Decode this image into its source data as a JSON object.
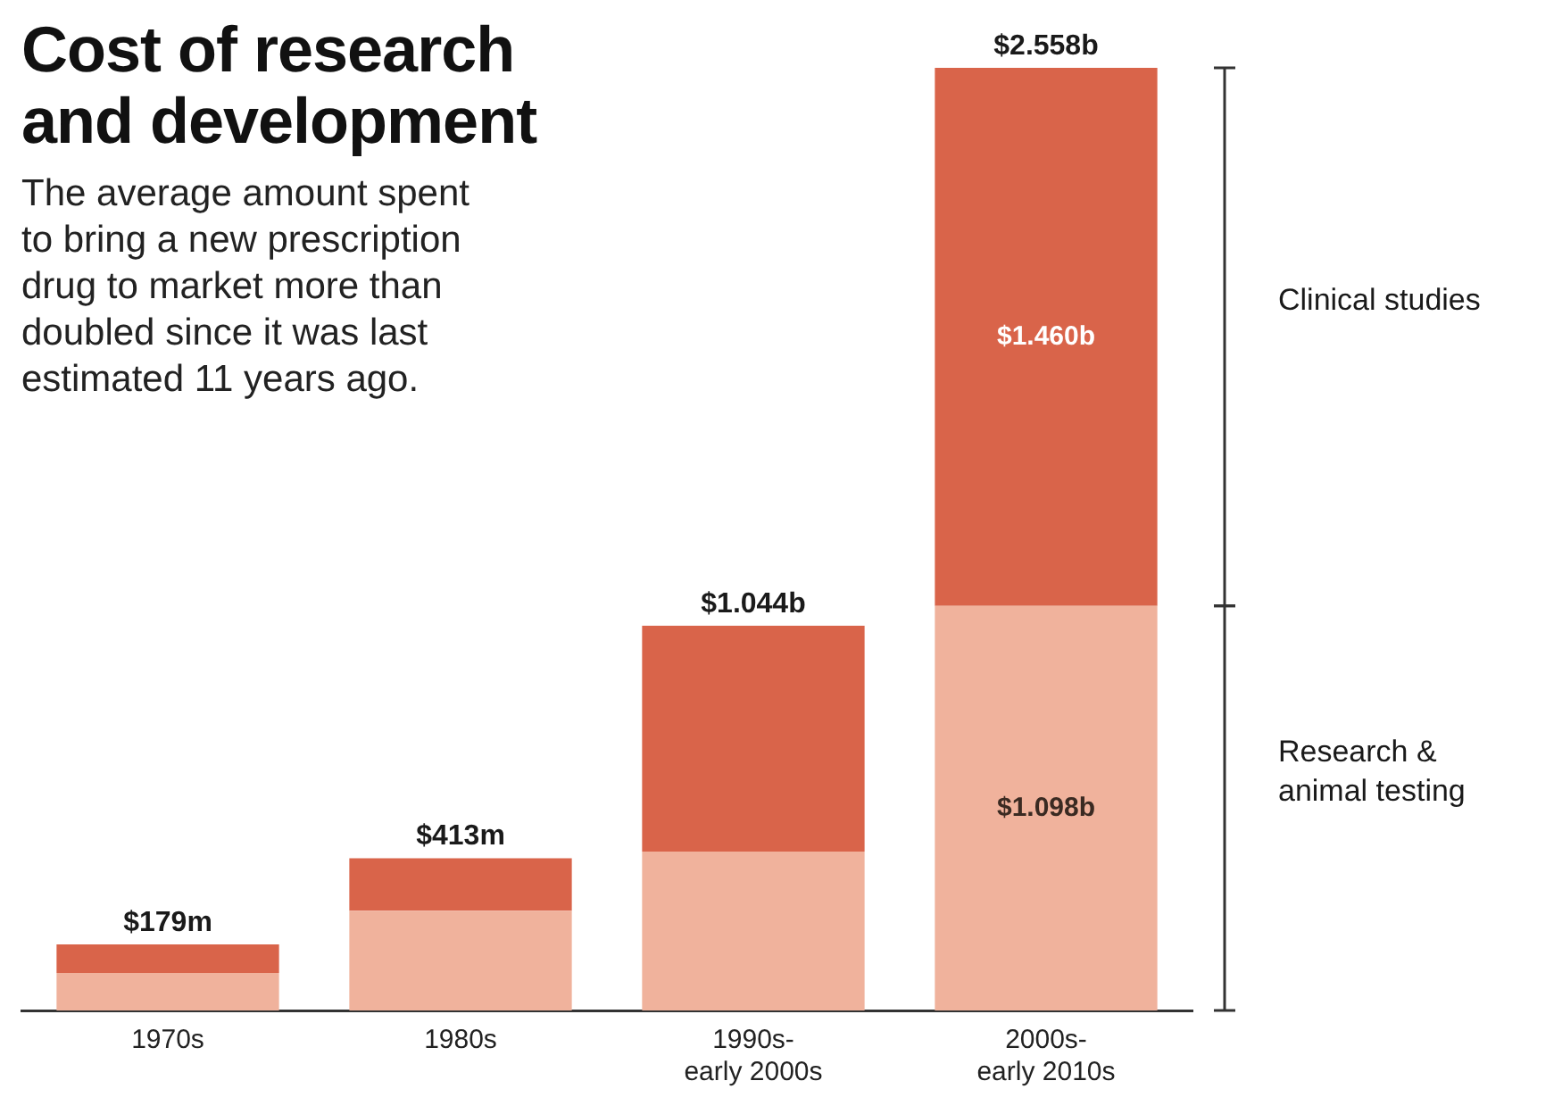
{
  "chart_data": {
    "type": "bar",
    "title": "Cost of research and development",
    "subtitle": "The average amount spent to bring a new prescription drug to market more than doubled since it was last estimated 11 years ago.",
    "categories": [
      "1970s",
      "1980s",
      "1990s-early 2000s",
      "2000s-early 2010s"
    ],
    "stacked": true,
    "series": [
      {
        "name": "Research & animal testing",
        "color": "#f0b29c",
        "values": [
          0.102,
          0.271,
          0.431,
          1.098
        ],
        "value_labels": [
          null,
          null,
          null,
          "$1.098b"
        ]
      },
      {
        "name": "Clinical studies",
        "color": "#d9644a",
        "values": [
          0.077,
          0.142,
          0.613,
          1.46
        ],
        "value_labels": [
          null,
          null,
          null,
          "$1.460b"
        ]
      }
    ],
    "totals": [
      "$179m",
      "$413m",
      "$1.044b",
      "$2.558b"
    ]
  }
}
